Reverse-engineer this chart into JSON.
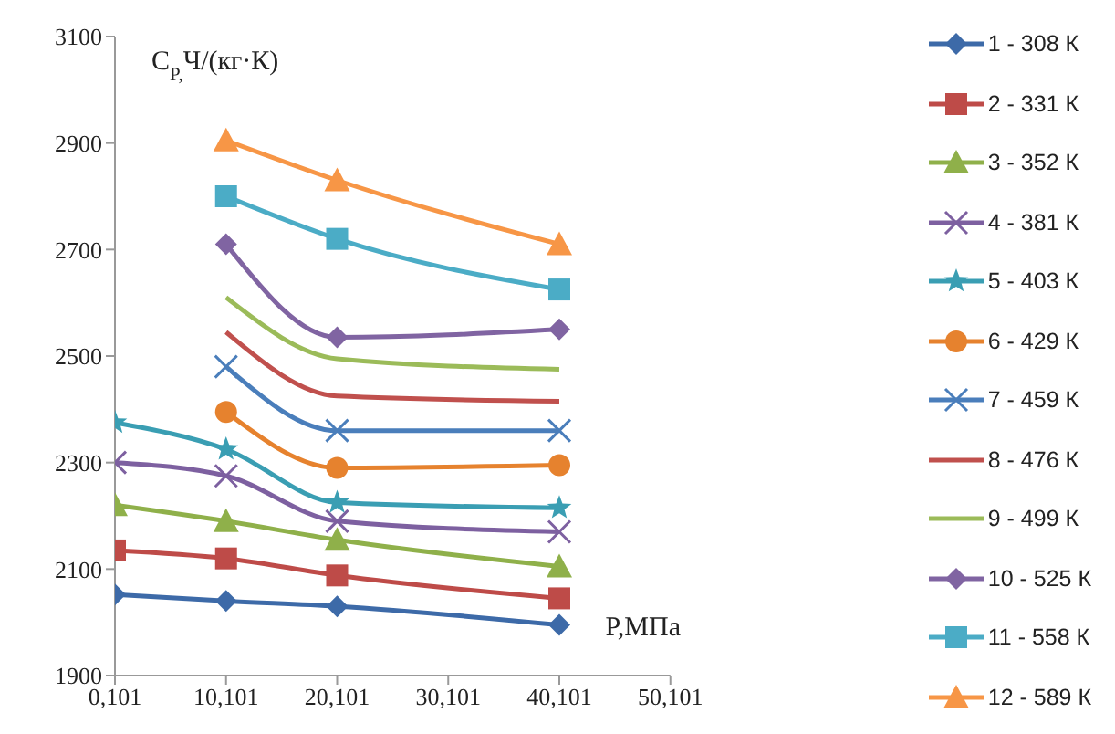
{
  "chart_data": {
    "type": "line",
    "ylabel": "C$_{P,}$Ч/(кг·К)",
    "xlabel": "P,МПа",
    "categories": [
      "0,101",
      "10,101",
      "20,101",
      "30,101",
      "40,101",
      "50,101"
    ],
    "ylim": [
      1900,
      3100
    ],
    "yticks": [
      1900,
      2100,
      2300,
      2500,
      2700,
      2900,
      3100
    ],
    "grid": false,
    "legend": "right",
    "series": [
      {
        "name": "1 - 308 К",
        "color": "#3d6aa8",
        "marker": "diamond",
        "values": [
          2052,
          2040,
          2030,
          null,
          1995,
          null
        ]
      },
      {
        "name": "2 - 331 К",
        "color": "#be4b48",
        "marker": "square",
        "values": [
          2135,
          2120,
          2088,
          null,
          2045,
          null
        ]
      },
      {
        "name": "3 - 352 К",
        "color": "#8fb04a",
        "marker": "triangle",
        "values": [
          2220,
          2190,
          2155,
          null,
          2105,
          null
        ]
      },
      {
        "name": "4 - 381 К",
        "color": "#7d60a0",
        "marker": "cross",
        "values": [
          2300,
          2275,
          2190,
          null,
          2170,
          null
        ]
      },
      {
        "name": "5 - 403 К",
        "color": "#3a9eb3",
        "marker": "star",
        "values": [
          2375,
          2325,
          2225,
          null,
          2215,
          null
        ]
      },
      {
        "name": "6 - 429 К",
        "color": "#e6822e",
        "marker": "circle",
        "values": [
          null,
          2395,
          2290,
          null,
          2295,
          null
        ]
      },
      {
        "name": "7 - 459 К",
        "color": "#4a7ebb",
        "marker": "cross",
        "values": [
          null,
          2480,
          2360,
          null,
          2360,
          null
        ]
      },
      {
        "name": "8 - 476 К",
        "color": "#c0504d",
        "marker": "none",
        "values": [
          null,
          2545,
          2425,
          null,
          2415,
          null
        ]
      },
      {
        "name": "9 - 499 К",
        "color": "#9bbb59",
        "marker": "none",
        "values": [
          null,
          2610,
          2495,
          null,
          2475,
          null
        ]
      },
      {
        "name": "10 - 525 К",
        "color": "#8064a2",
        "marker": "diamond",
        "values": [
          null,
          2710,
          2535,
          null,
          2550,
          null
        ]
      },
      {
        "name": "11 - 558 К",
        "color": "#4bacc6",
        "marker": "square",
        "values": [
          null,
          2800,
          2720,
          null,
          2625,
          null
        ]
      },
      {
        "name": "12 - 589 К",
        "color": "#f79646",
        "marker": "triangle",
        "values": [
          null,
          2905,
          2830,
          null,
          2710,
          null
        ]
      }
    ]
  }
}
